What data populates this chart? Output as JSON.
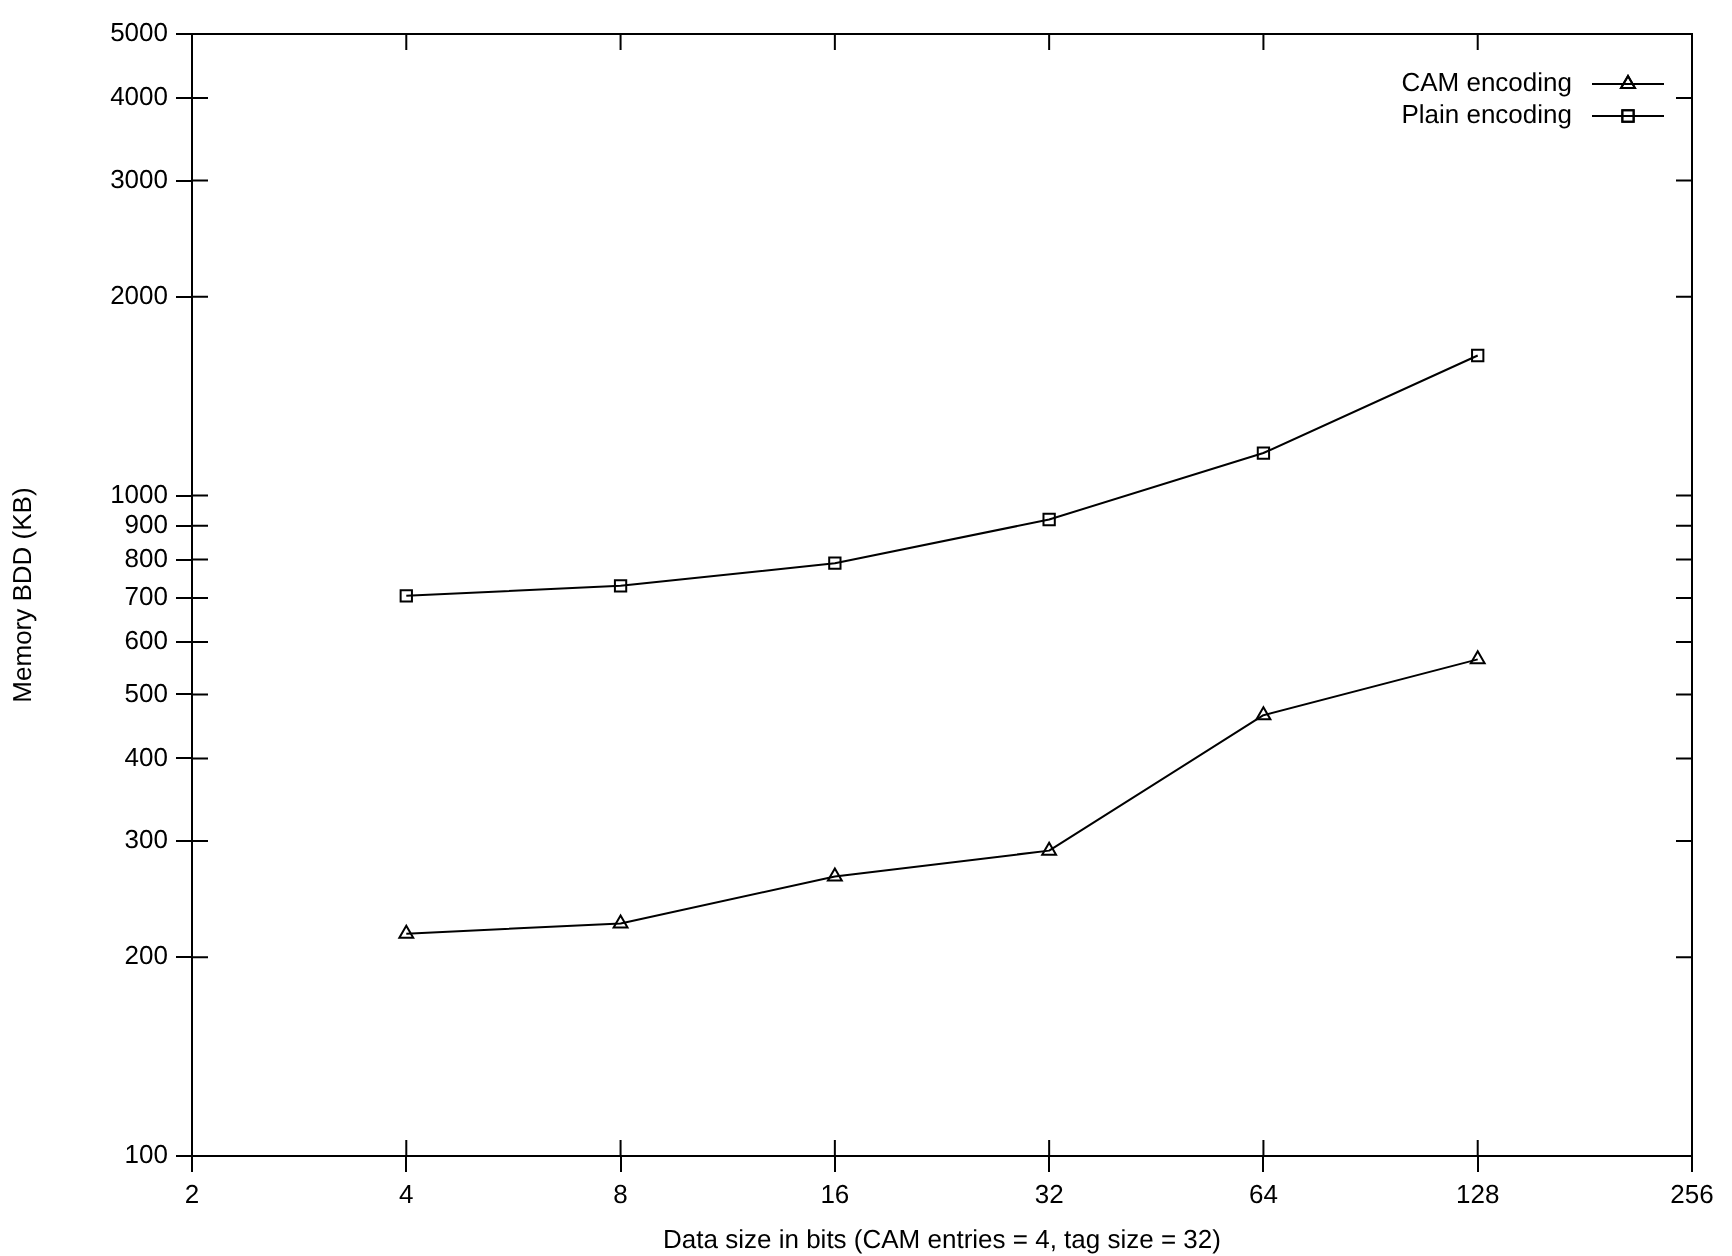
{
  "chart_data": {
    "type": "line",
    "xlabel": "Data size in bits (CAM entries = 4, tag size = 32)",
    "ylabel": "Memory BDD (KB)",
    "x": [
      4,
      8,
      16,
      32,
      64,
      128
    ],
    "series": [
      {
        "name": "CAM encoding",
        "color": "#000000",
        "marker": "triangle",
        "values": [
          217,
          225,
          265,
          290,
          465,
          565
        ]
      },
      {
        "name": "Plain encoding",
        "color": "#000000",
        "marker": "square",
        "values": [
          705,
          730,
          790,
          920,
          1160,
          1630
        ]
      }
    ],
    "log": "xy",
    "xlim": [
      2,
      256
    ],
    "xticks": [
      2,
      4,
      8,
      16,
      32,
      64,
      128,
      256
    ],
    "ylim": [
      100,
      5000
    ],
    "yticks": [
      100,
      200,
      300,
      400,
      500,
      600,
      700,
      800,
      900,
      1000,
      2000,
      3000,
      4000,
      5000
    ],
    "grid": false,
    "legend": "top right",
    "line_style": "solid"
  }
}
